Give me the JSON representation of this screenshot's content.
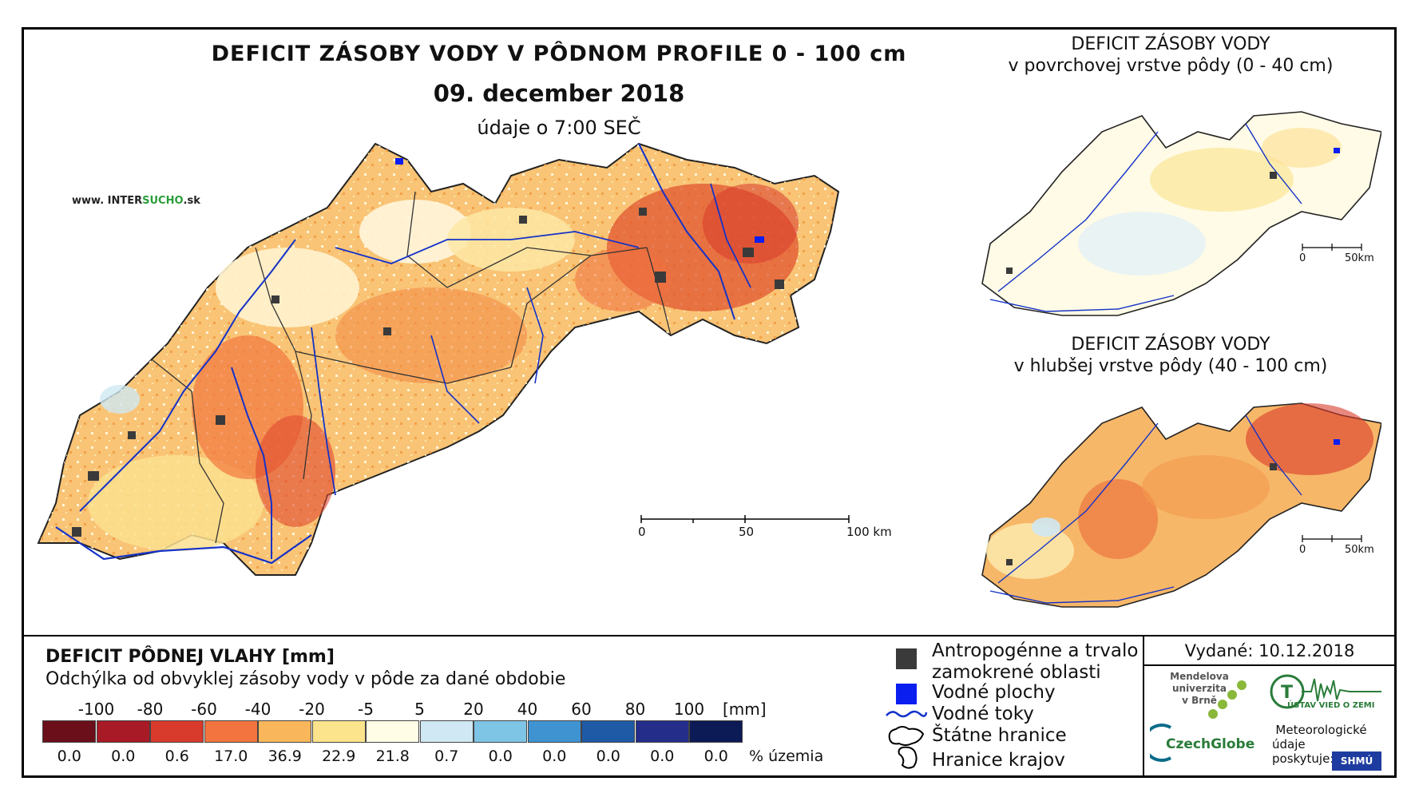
{
  "header": {
    "title": "DEFICIT ZÁSOBY VODY V PÔDNOM PROFILE 0 - 100 cm",
    "date": "09. december 2018",
    "time": "údaje o 7:00 SEČ",
    "website_prefix": "www. INTER",
    "website_brand": "SUCHO",
    "website_suffix": ".sk"
  },
  "main_map": {
    "scale_labels": [
      "0",
      "50",
      "100 km"
    ]
  },
  "inset_top": {
    "title_line1": "DEFICIT ZÁSOBY VODY",
    "title_line2": "v povrchovej vrstve pôdy (0 - 40 cm)",
    "scale_labels": [
      "0",
      "50km"
    ]
  },
  "inset_bottom": {
    "title_line1": "DEFICIT ZÁSOBY VODY",
    "title_line2": "v hlubšej vrstve pôdy (40 - 100 cm)",
    "scale_labels": [
      "0",
      "50km"
    ]
  },
  "legend": {
    "title": "DEFICIT PÔDNEJ VLAHY [mm]",
    "subtitle": "Odchýlka od obvyklej zásoby vody v pôde za dané obdobie",
    "ticks": [
      "-100",
      "-80",
      "-60",
      "-40",
      "-20",
      "-5",
      "5",
      "20",
      "40",
      "60",
      "80",
      "100"
    ],
    "unit": "[mm]",
    "colors": [
      "#6b0f1a",
      "#a81a26",
      "#d83a2c",
      "#f4743f",
      "#f9b65b",
      "#fce48c",
      "#fffde6",
      "#cfe8f3",
      "#7ec4e5",
      "#3f93d1",
      "#1e5aa6",
      "#242d8a",
      "#0c1a55"
    ],
    "percentages": [
      "0.0",
      "0.0",
      "0.6",
      "17.0",
      "36.9",
      "22.9",
      "21.8",
      "0.7",
      "0.0",
      "0.0",
      "0.0",
      "0.0",
      "0.0"
    ],
    "percent_unit": "% územia"
  },
  "symbols": {
    "anthropogenic_line1": "Antropogénne a trvalo",
    "anthropogenic_line2": "zamokrené oblasti",
    "water_bodies": "Vodné plochy",
    "water_courses": "Vodné toky",
    "state_border": "Štátne hranice",
    "region_border": "Hranice krajov"
  },
  "issued": {
    "label": "Vydané: 10.12.2018",
    "mendel_line1": "Mendelova",
    "mendel_line2": "univerzita",
    "mendel_line3": "v Brně",
    "czechglobe": "CzechGlobe",
    "uvgz": "ÚSTAV VIED O ZEMI",
    "meteo_line1": "Meteorologické",
    "meteo_line2": "údaje",
    "meteo_line3": "poskytuje:",
    "shmu": "SHMÚ"
  }
}
